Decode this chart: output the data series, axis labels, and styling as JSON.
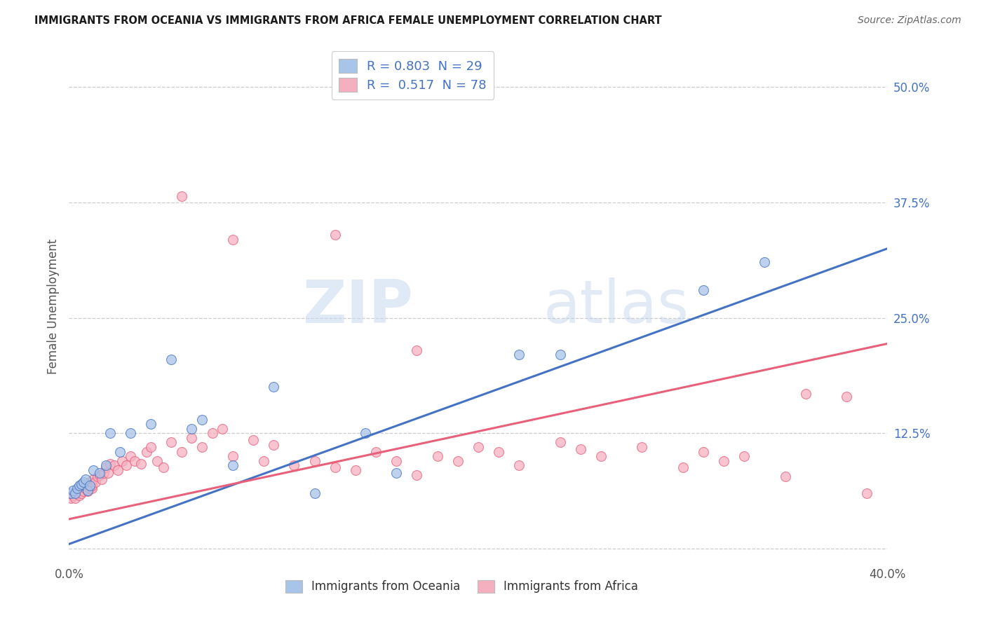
{
  "title": "IMMIGRANTS FROM OCEANIA VS IMMIGRANTS FROM AFRICA FEMALE UNEMPLOYMENT CORRELATION CHART",
  "source": "Source: ZipAtlas.com",
  "ylabel": "Female Unemployment",
  "xmin": 0.0,
  "xmax": 0.4,
  "ymin": -0.015,
  "ymax": 0.54,
  "oceania_R": 0.803,
  "oceania_N": 29,
  "africa_R": 0.517,
  "africa_N": 78,
  "oceania_color": "#a8c4e8",
  "africa_color": "#f5b0c0",
  "oceania_line_color": "#4472c4",
  "africa_line_color": "#e8607a",
  "watermark_color": "#d5e5f5",
  "oceania_x": [
    0.001,
    0.002,
    0.003,
    0.004,
    0.005,
    0.006,
    0.007,
    0.008,
    0.009,
    0.01,
    0.012,
    0.015,
    0.018,
    0.02,
    0.025,
    0.03,
    0.04,
    0.05,
    0.06,
    0.065,
    0.08,
    0.1,
    0.12,
    0.145,
    0.16,
    0.22,
    0.24,
    0.31,
    0.34
  ],
  "oceania_y": [
    0.06,
    0.063,
    0.06,
    0.065,
    0.068,
    0.07,
    0.072,
    0.075,
    0.063,
    0.068,
    0.085,
    0.082,
    0.09,
    0.125,
    0.105,
    0.125,
    0.135,
    0.205,
    0.13,
    0.14,
    0.09,
    0.175,
    0.06,
    0.125,
    0.082,
    0.21,
    0.21,
    0.28,
    0.31
  ],
  "africa_x": [
    0.001,
    0.002,
    0.003,
    0.003,
    0.004,
    0.004,
    0.005,
    0.005,
    0.006,
    0.006,
    0.007,
    0.007,
    0.008,
    0.008,
    0.009,
    0.009,
    0.01,
    0.01,
    0.011,
    0.011,
    0.012,
    0.013,
    0.014,
    0.015,
    0.016,
    0.017,
    0.018,
    0.019,
    0.02,
    0.022,
    0.024,
    0.026,
    0.028,
    0.03,
    0.032,
    0.035,
    0.038,
    0.04,
    0.043,
    0.046,
    0.05,
    0.055,
    0.06,
    0.065,
    0.07,
    0.075,
    0.08,
    0.09,
    0.095,
    0.1,
    0.11,
    0.12,
    0.13,
    0.14,
    0.15,
    0.16,
    0.17,
    0.18,
    0.19,
    0.2,
    0.21,
    0.22,
    0.24,
    0.25,
    0.26,
    0.28,
    0.3,
    0.31,
    0.32,
    0.33,
    0.35,
    0.36,
    0.38,
    0.39,
    0.055,
    0.08,
    0.13,
    0.17
  ],
  "africa_y": [
    0.055,
    0.058,
    0.06,
    0.055,
    0.062,
    0.06,
    0.058,
    0.065,
    0.06,
    0.068,
    0.062,
    0.068,
    0.065,
    0.07,
    0.062,
    0.07,
    0.065,
    0.072,
    0.065,
    0.068,
    0.075,
    0.072,
    0.078,
    0.08,
    0.075,
    0.082,
    0.088,
    0.082,
    0.092,
    0.09,
    0.085,
    0.095,
    0.09,
    0.1,
    0.095,
    0.092,
    0.105,
    0.11,
    0.095,
    0.088,
    0.115,
    0.105,
    0.12,
    0.11,
    0.125,
    0.13,
    0.1,
    0.118,
    0.095,
    0.112,
    0.09,
    0.095,
    0.088,
    0.085,
    0.105,
    0.095,
    0.08,
    0.1,
    0.095,
    0.11,
    0.105,
    0.09,
    0.115,
    0.108,
    0.1,
    0.11,
    0.088,
    0.105,
    0.095,
    0.1,
    0.078,
    0.168,
    0.165,
    0.06,
    0.382,
    0.335,
    0.34,
    0.215
  ]
}
